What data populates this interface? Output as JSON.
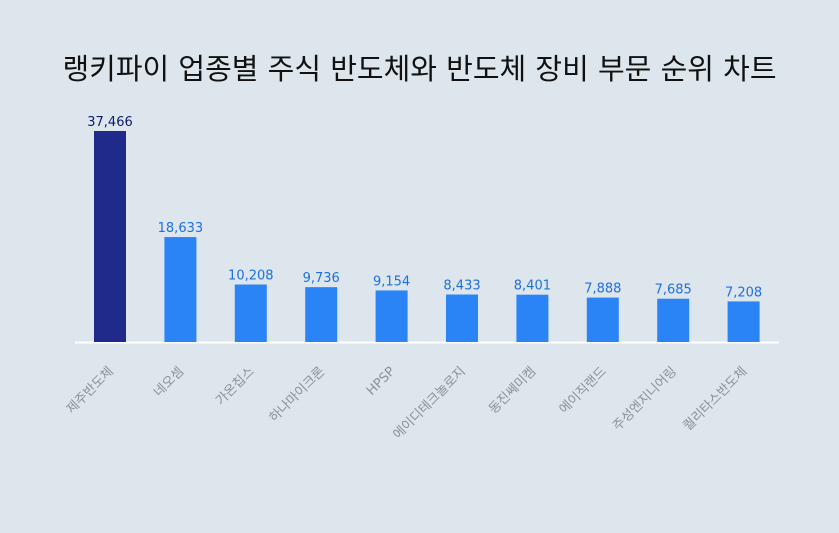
{
  "chart_data": {
    "type": "bar",
    "title": "랭키파이 업종별 주식 반도체와 반도체 장비 부문 순위 차트",
    "xlabel": "",
    "ylabel": "",
    "ylim": [
      0,
      37466
    ],
    "grid": false,
    "legend": "none",
    "categories": [
      "제주반도체",
      "네오셈",
      "가온칩스",
      "하나마이크론",
      "HPSP",
      "에이디테크놀로지",
      "동진쎄미켐",
      "에이직랜드",
      "주성엔지니어링",
      "퀄리타스반도체"
    ],
    "values": [
      37466,
      18633,
      10208,
      9736,
      9154,
      8433,
      8401,
      7888,
      7685,
      7208
    ],
    "value_labels": [
      "37,466",
      "18,633",
      "10,208",
      "9,736",
      "9,154",
      "8,433",
      "8,401",
      "7,888",
      "7,685",
      "7,208"
    ],
    "colors": {
      "highlight_bar": "#1f2a8a",
      "bar": "#2b84f5",
      "highlight_label": "#0f1a6b",
      "label": "#1f6fe0",
      "category_label": "#8a9199",
      "axis": "#ffffff",
      "background": "#dce6ec"
    }
  }
}
